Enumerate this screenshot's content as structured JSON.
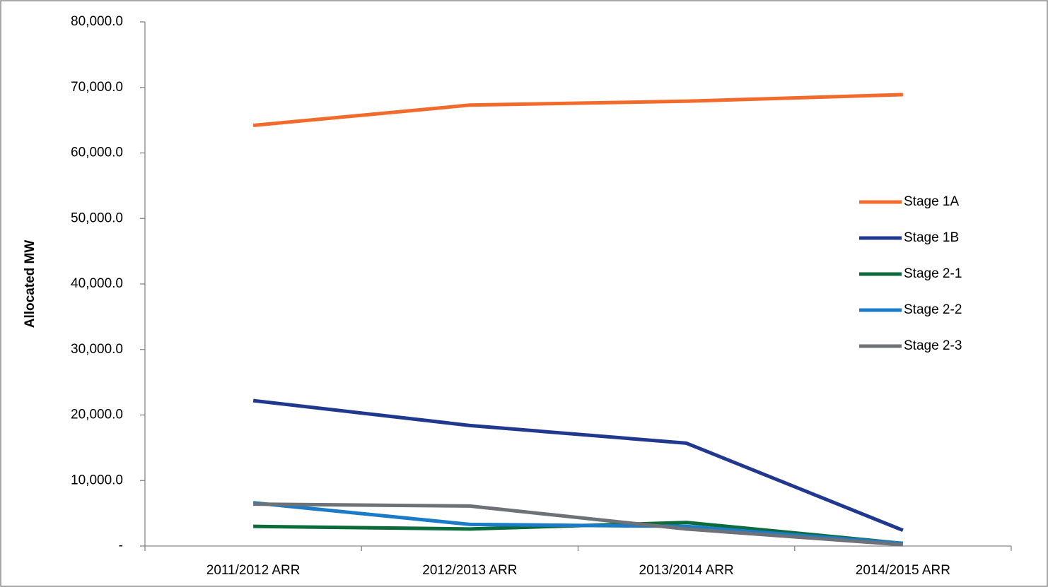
{
  "chart_data": {
    "type": "line",
    "y_label": "Allocated MW",
    "categories": [
      "2011/2012 ARR",
      "2012/2013 ARR",
      "2013/2014 ARR",
      "2014/2015 ARR"
    ],
    "series": [
      {
        "name": "Stage 1A",
        "color": "#f26b2c",
        "values": [
          64200,
          67300,
          67900,
          68900
        ]
      },
      {
        "name": "Stage 1B",
        "color": "#21388f",
        "values": [
          22200,
          18400,
          15700,
          2400
        ]
      },
      {
        "name": "Stage 2-1",
        "color": "#0c6b3a",
        "values": [
          3000,
          2600,
          3600,
          400
        ]
      },
      {
        "name": "Stage 2-2",
        "color": "#1a7cc9",
        "values": [
          6600,
          3300,
          3000,
          400
        ]
      },
      {
        "name": "Stage 2-3",
        "color": "#6d7278",
        "values": [
          6400,
          6100,
          2600,
          200
        ]
      }
    ],
    "ylim": [
      0,
      80000
    ],
    "yticks": [
      {
        "value": 0,
        "label": "-"
      },
      {
        "value": 10000,
        "label": "10,000.0"
      },
      {
        "value": 20000,
        "label": "20,000.0"
      },
      {
        "value": 30000,
        "label": "30,000.0"
      },
      {
        "value": 40000,
        "label": "40,000.0"
      },
      {
        "value": 50000,
        "label": "50,000.0"
      },
      {
        "value": 60000,
        "label": "60,000.0"
      },
      {
        "value": 70000,
        "label": "70,000.0"
      },
      {
        "value": 80000,
        "label": "80,000.0"
      }
    ],
    "legend": "right"
  }
}
